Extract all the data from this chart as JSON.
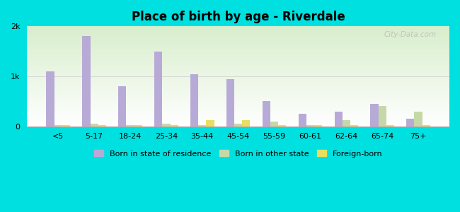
{
  "title": "Place of birth by age - Riverdale",
  "categories": [
    "<5",
    "5-17",
    "18-24",
    "25-34",
    "35-44",
    "45-54",
    "55-59",
    "60-61",
    "62-64",
    "65-74",
    "75+"
  ],
  "born_in_state": [
    1100,
    1800,
    800,
    1500,
    1050,
    950,
    500,
    250,
    300,
    450,
    150
  ],
  "born_other_state": [
    30,
    50,
    30,
    50,
    30,
    50,
    100,
    30,
    130,
    400,
    300
  ],
  "foreign_born": [
    30,
    30,
    20,
    30,
    120,
    120,
    30,
    20,
    20,
    20,
    20
  ],
  "bar_width": 0.22,
  "color_state": "#b8aad6",
  "color_other": "#c5d9a8",
  "color_foreign": "#e8de60",
  "ylim": [
    0,
    2000
  ],
  "yticks": [
    0,
    1000,
    2000
  ],
  "ytick_labels": [
    "0",
    "1k",
    "2k"
  ],
  "outer_bg": "#00e0e0",
  "watermark": "City-Data.com",
  "legend_labels": [
    "Born in state of residence",
    "Born in other state",
    "Foreign-born"
  ]
}
